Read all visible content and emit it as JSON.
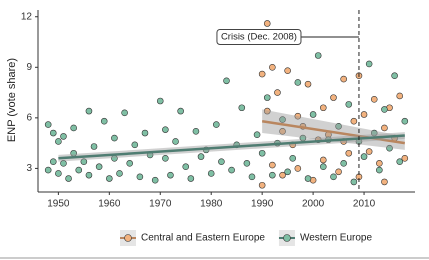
{
  "chart_data": {
    "type": "scatter",
    "y_label": "ENP (vote share)",
    "xlim": [
      1946,
      2020
    ],
    "ylim": [
      1.6,
      12.4
    ],
    "xticks": [
      1950,
      1960,
      1970,
      1980,
      1990,
      2000,
      2010
    ],
    "yticks": [
      3,
      6,
      9,
      12
    ],
    "annotation": {
      "text": "Crisis (Dec. 2008)",
      "x": 2009,
      "y": 10.8
    },
    "legend": "bottom",
    "series": [
      {
        "name": "Central and Eastern Europe",
        "color": "#f2b27f",
        "line_color": "#b9865f",
        "x": [
          1990,
          1990,
          1991,
          1991,
          1992,
          1992,
          1993,
          1994,
          1994,
          1995,
          1996,
          1997,
          1997,
          1998,
          1999,
          2000,
          2001,
          2002,
          2002,
          2003,
          2004,
          2005,
          2006,
          2006,
          2007,
          2008,
          2009,
          2009,
          2010,
          2011,
          2012,
          2013,
          2014,
          2014,
          2015,
          2016,
          2017,
          2018
        ],
        "values": [
          8.6,
          2.0,
          6.4,
          11.6,
          9.0,
          3.2,
          7.5,
          5.2,
          2.6,
          8.8,
          4.4,
          6.1,
          3.0,
          5.5,
          8.0,
          2.3,
          4.7,
          6.6,
          3.5,
          5.0,
          7.2,
          2.8,
          4.6,
          8.3,
          3.9,
          5.8,
          8.5,
          2.5,
          6.2,
          4.0,
          7.1,
          3.3,
          5.4,
          2.2,
          6.6,
          4.8,
          7.3,
          3.6
        ],
        "fit": {
          "x": [
            1990,
            2018
          ],
          "values": [
            5.8,
            4.5
          ],
          "lower": [
            5.1,
            4.1
          ],
          "upper": [
            6.5,
            4.9
          ]
        }
      },
      {
        "name": "Western Europe",
        "color": "#7fbfa4",
        "line_color": "#4f7d72",
        "x": [
          1948,
          1948,
          1949,
          1949,
          1950,
          1950,
          1951,
          1951,
          1952,
          1953,
          1953,
          1954,
          1955,
          1956,
          1956,
          1957,
          1958,
          1959,
          1960,
          1961,
          1961,
          1962,
          1963,
          1964,
          1965,
          1966,
          1967,
          1968,
          1969,
          1970,
          1971,
          1971,
          1972,
          1973,
          1974,
          1975,
          1976,
          1977,
          1978,
          1979,
          1980,
          1981,
          1982,
          1983,
          1984,
          1985,
          1986,
          1987,
          1988,
          1989,
          1990,
          1991,
          1992,
          1993,
          1994,
          1995,
          1996,
          1997,
          1998,
          1999,
          2000,
          2001,
          2002,
          2003,
          2004,
          2005,
          2006,
          2007,
          2008,
          2009,
          2010,
          2011,
          2012,
          2013,
          2014,
          2015,
          2016,
          2017,
          2018
        ],
        "values": [
          5.6,
          2.9,
          3.4,
          5.1,
          4.6,
          2.7,
          3.3,
          4.9,
          2.4,
          3.9,
          5.4,
          2.9,
          3.4,
          6.4,
          2.6,
          4.3,
          3.1,
          5.8,
          2.4,
          3.6,
          4.8,
          2.7,
          6.3,
          3.3,
          4.4,
          2.5,
          5.1,
          3.8,
          2.3,
          7.0,
          3.6,
          5.3,
          2.6,
          4.6,
          6.4,
          3.1,
          2.4,
          5.2,
          3.7,
          4.1,
          2.7,
          5.6,
          3.4,
          8.2,
          2.9,
          4.4,
          6.6,
          3.3,
          2.5,
          5.0,
          3.9,
          7.2,
          2.6,
          4.5,
          5.9,
          2.8,
          3.6,
          8.1,
          4.8,
          2.4,
          6.2,
          9.7,
          3.1,
          4.7,
          2.5,
          5.5,
          3.3,
          6.8,
          2.2,
          4.6,
          3.7,
          9.2,
          5.1,
          2.9,
          6.5,
          4.2,
          8.5,
          3.4,
          5.8
        ],
        "fit": {
          "x": [
            1950,
            2018
          ],
          "values": [
            3.6,
            4.95
          ],
          "lower": [
            3.4,
            4.75
          ],
          "upper": [
            3.8,
            5.15
          ]
        }
      }
    ]
  }
}
